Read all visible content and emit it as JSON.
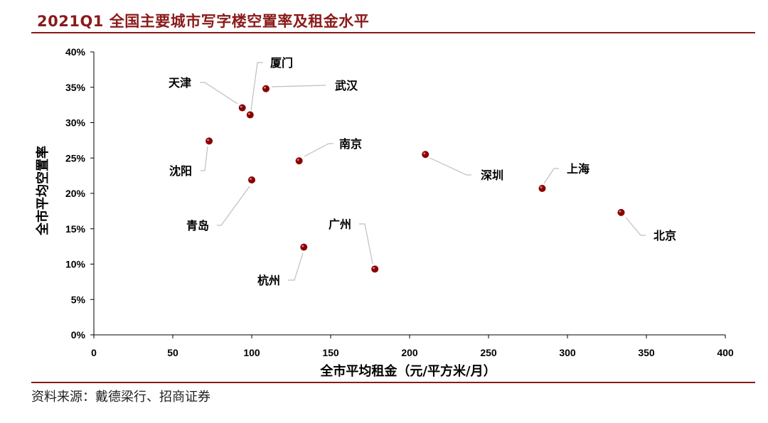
{
  "title": "2021Q1 全国主要城市写字楼空置率及租金水平",
  "source": "资料来源：戴德梁行、招商证券",
  "colors": {
    "accent": "#8B1A1A",
    "point": "#8B0000",
    "leader": "#bfbfbf"
  },
  "chart_data": {
    "type": "scatter",
    "xlabel": "全市平均租金（元/平方米/月）",
    "ylabel": "全市平均空置率",
    "xlim": [
      0,
      400
    ],
    "ylim": [
      0,
      40
    ],
    "xticks": [
      "0",
      "50",
      "100",
      "150",
      "200",
      "250",
      "300",
      "350",
      "400"
    ],
    "yticks": [
      "0%",
      "5%",
      "10%",
      "15%",
      "20%",
      "25%",
      "30%",
      "35%",
      "40%"
    ],
    "grid": false,
    "points": [
      {
        "name": "天津",
        "x": 94,
        "y": 32.1
      },
      {
        "name": "厦门",
        "x": 99,
        "y": 31.1
      },
      {
        "name": "武汉",
        "x": 109,
        "y": 34.8
      },
      {
        "name": "沈阳",
        "x": 73,
        "y": 27.4
      },
      {
        "name": "南京",
        "x": 130,
        "y": 24.6
      },
      {
        "name": "深圳",
        "x": 210,
        "y": 25.5
      },
      {
        "name": "青岛",
        "x": 100,
        "y": 21.9
      },
      {
        "name": "上海",
        "x": 284,
        "y": 20.7
      },
      {
        "name": "北京",
        "x": 334,
        "y": 17.3
      },
      {
        "name": "广州",
        "x": 178,
        "y": 9.3
      },
      {
        "name": "杭州",
        "x": 133,
        "y": 12.4
      }
    ]
  }
}
